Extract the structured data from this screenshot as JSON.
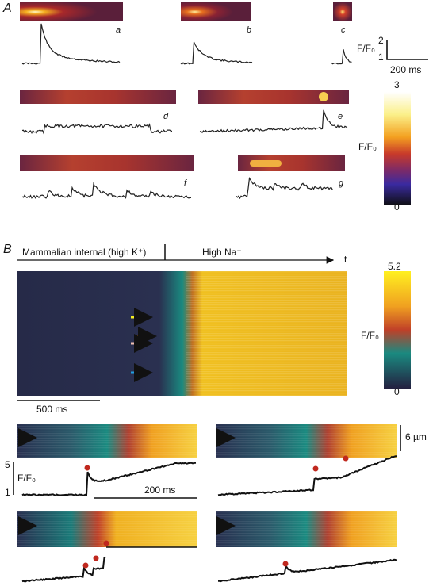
{
  "panel_a": {
    "label": "A",
    "images": [
      {
        "label": "a"
      },
      {
        "label": "b"
      },
      {
        "label": "c"
      },
      {
        "label": "d"
      },
      {
        "label": "e"
      },
      {
        "label": "f"
      },
      {
        "label": "g"
      }
    ],
    "scale_bar": {
      "axis_label": "F/F₀",
      "top": 2,
      "bottom": 1,
      "time": "200 ms"
    },
    "colorbar": {
      "max": 3,
      "label": "F/F₀",
      "min": 0
    }
  },
  "panel_b": {
    "label": "B",
    "condition_1": "Mammalian internal (high K⁺)",
    "condition_2": "High Na⁺",
    "time_axis": "t",
    "colorbar": {
      "max": 5.2,
      "label": "F/F₀",
      "min": 0
    },
    "scale_bar_time": "500 ms",
    "scale_bar_space": "6 µm",
    "trace_scale": {
      "top": 5,
      "bottom": 1,
      "axis_label": "F/F₀",
      "time": "200 ms"
    }
  }
}
